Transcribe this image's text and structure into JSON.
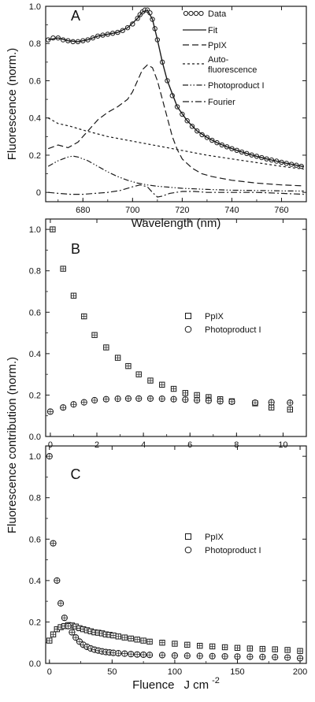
{
  "chart_data": [
    {
      "panel_label": "A",
      "type": "line",
      "xlabel": "Wavelength (nm)",
      "ylabel": "",
      "xlim": [
        665,
        770
      ],
      "ylim": [
        -0.05,
        1.0
      ],
      "xticks": [
        "680",
        "700",
        "720",
        "740",
        "760"
      ],
      "yticks": [
        "0",
        "0.2",
        "0.4",
        "0.6",
        "0.8",
        "1.0"
      ],
      "legend_position": "top-right",
      "series": [
        {
          "name": "Data",
          "style": "circles",
          "x": [
            666,
            668,
            670,
            672,
            674,
            676,
            678,
            680,
            682,
            684,
            686,
            688,
            690,
            692,
            694,
            696,
            698,
            700,
            702,
            703,
            704,
            705,
            706,
            707,
            708,
            709,
            710,
            712,
            714,
            716,
            718,
            720,
            722,
            724,
            726,
            728,
            730,
            732,
            734,
            736,
            738,
            740,
            742,
            744,
            746,
            748,
            750,
            752,
            754,
            756,
            758,
            760,
            762,
            764,
            766,
            768
          ],
          "y": [
            0.82,
            0.83,
            0.83,
            0.82,
            0.815,
            0.81,
            0.81,
            0.815,
            0.82,
            0.83,
            0.84,
            0.845,
            0.85,
            0.855,
            0.86,
            0.87,
            0.885,
            0.905,
            0.935,
            0.955,
            0.97,
            0.98,
            0.98,
            0.965,
            0.93,
            0.88,
            0.82,
            0.7,
            0.6,
            0.52,
            0.46,
            0.42,
            0.385,
            0.355,
            0.33,
            0.31,
            0.295,
            0.28,
            0.267,
            0.255,
            0.245,
            0.235,
            0.226,
            0.217,
            0.209,
            0.201,
            0.194,
            0.187,
            0.18,
            0.174,
            0.168,
            0.162,
            0.156,
            0.151,
            0.146,
            0.14
          ]
        },
        {
          "name": "Fit",
          "style": "solid",
          "x": [
            666,
            670,
            674,
            678,
            682,
            686,
            690,
            694,
            698,
            702,
            704,
            706,
            708,
            710,
            712,
            714,
            718,
            722,
            726,
            730,
            734,
            738,
            742,
            746,
            750,
            754,
            758,
            762,
            766,
            769
          ],
          "y": [
            0.82,
            0.83,
            0.815,
            0.81,
            0.82,
            0.84,
            0.85,
            0.86,
            0.885,
            0.935,
            0.97,
            0.98,
            0.93,
            0.82,
            0.7,
            0.6,
            0.46,
            0.385,
            0.33,
            0.295,
            0.267,
            0.245,
            0.226,
            0.209,
            0.194,
            0.18,
            0.168,
            0.156,
            0.146,
            0.138
          ]
        },
        {
          "name": "PpIX",
          "style": "dash",
          "x": [
            666,
            670,
            674,
            678,
            682,
            686,
            690,
            694,
            698,
            700,
            702,
            704,
            706,
            708,
            710,
            712,
            714,
            716,
            718,
            720,
            724,
            728,
            732,
            740,
            750,
            760,
            769
          ],
          "y": [
            0.235,
            0.255,
            0.24,
            0.27,
            0.33,
            0.39,
            0.43,
            0.46,
            0.5,
            0.54,
            0.6,
            0.66,
            0.685,
            0.67,
            0.6,
            0.5,
            0.4,
            0.3,
            0.23,
            0.18,
            0.13,
            0.1,
            0.085,
            0.065,
            0.05,
            0.04,
            0.035
          ]
        },
        {
          "name": "Auto-fluorescence",
          "style": "shortdash",
          "x": [
            666,
            670,
            675,
            680,
            690,
            700,
            710,
            720,
            730,
            740,
            750,
            760,
            769
          ],
          "y": [
            0.4,
            0.37,
            0.355,
            0.335,
            0.3,
            0.275,
            0.25,
            0.225,
            0.2,
            0.18,
            0.16,
            0.14,
            0.125
          ]
        },
        {
          "name": "Photoproduct I",
          "style": "dashdotdot",
          "x": [
            666,
            670,
            674,
            676,
            678,
            682,
            686,
            690,
            694,
            698,
            702,
            706,
            710,
            720,
            730,
            740,
            750,
            760,
            769
          ],
          "y": [
            0.14,
            0.17,
            0.19,
            0.195,
            0.19,
            0.17,
            0.14,
            0.11,
            0.085,
            0.065,
            0.05,
            0.04,
            0.033,
            0.022,
            0.016,
            0.012,
            0.01,
            0.008,
            0.007
          ]
        },
        {
          "name": "Fourier",
          "style": "dashdot",
          "x": [
            666,
            670,
            675,
            680,
            685,
            690,
            695,
            700,
            703,
            706,
            708,
            710,
            712,
            715,
            720,
            725,
            730,
            740,
            750,
            760,
            769
          ],
          "y": [
            0.0,
            -0.005,
            -0.01,
            -0.01,
            -0.005,
            0.0,
            0.01,
            0.03,
            0.04,
            0.03,
            0.0,
            -0.025,
            -0.02,
            -0.005,
            0.005,
            0.005,
            0.0,
            0.0,
            0.0,
            -0.005,
            -0.01
          ]
        }
      ]
    },
    {
      "panel_label": "B",
      "type": "scatter",
      "xlabel": "",
      "ylabel": "",
      "xlim": [
        -0.2,
        11
      ],
      "ylim": [
        0,
        1.05
      ],
      "xticks": [
        "0",
        "2",
        "4",
        "6",
        "8",
        "10"
      ],
      "yticks": [
        "0.0",
        "0.2",
        "0.4",
        "0.6",
        "0.8",
        "1.0"
      ],
      "legend_position": "center-right",
      "series": [
        {
          "name": "PpIX",
          "marker": "square",
          "x": [
            0.1,
            0.55,
            1.0,
            1.45,
            1.9,
            2.4,
            2.9,
            3.35,
            3.8,
            4.3,
            4.8,
            5.3,
            5.8,
            6.3,
            6.8,
            7.3,
            7.8,
            8.8,
            9.5,
            10.3
          ],
          "y": [
            1.0,
            0.81,
            0.68,
            0.58,
            0.49,
            0.43,
            0.38,
            0.34,
            0.3,
            0.27,
            0.25,
            0.23,
            0.21,
            0.2,
            0.19,
            0.18,
            0.17,
            0.16,
            0.14,
            0.13
          ]
        },
        {
          "name": "Photoproduct I",
          "marker": "circle",
          "x": [
            0.0,
            0.55,
            1.0,
            1.45,
            1.9,
            2.4,
            2.9,
            3.35,
            3.8,
            4.3,
            4.8,
            5.3,
            5.8,
            6.3,
            6.8,
            7.3,
            7.8,
            8.8,
            9.5,
            10.3
          ],
          "y": [
            0.12,
            0.14,
            0.155,
            0.165,
            0.175,
            0.18,
            0.182,
            0.183,
            0.183,
            0.183,
            0.182,
            0.18,
            0.178,
            0.175,
            0.173,
            0.17,
            0.168,
            0.163,
            0.165,
            0.163
          ]
        }
      ]
    },
    {
      "panel_label": "C",
      "type": "scatter",
      "xlabel": "Fluence",
      "xlabel_unit": "J cm",
      "xlabel_sup": "-2",
      "ylabel": "",
      "xlim": [
        -3,
        205
      ],
      "ylim": [
        0,
        1.05
      ],
      "xticks": [
        "0",
        "50",
        "100",
        "150",
        "200"
      ],
      "yticks": [
        "0.0",
        "0.2",
        "0.4",
        "0.6",
        "0.8",
        "1.0"
      ],
      "legend_position": "center-right",
      "series": [
        {
          "name": "PpIX",
          "marker": "square",
          "x": [
            0,
            3,
            6,
            9,
            12,
            15,
            18,
            21,
            24,
            27,
            30,
            33,
            36,
            39,
            42,
            45,
            48,
            51,
            55,
            60,
            65,
            70,
            75,
            80,
            90,
            100,
            110,
            120,
            130,
            140,
            150,
            160,
            170,
            180,
            190,
            200
          ],
          "y": [
            0.11,
            0.14,
            0.165,
            0.175,
            0.18,
            0.185,
            0.183,
            0.178,
            0.17,
            0.165,
            0.16,
            0.155,
            0.15,
            0.148,
            0.145,
            0.14,
            0.138,
            0.135,
            0.13,
            0.125,
            0.12,
            0.115,
            0.11,
            0.105,
            0.1,
            0.095,
            0.09,
            0.085,
            0.082,
            0.078,
            0.075,
            0.072,
            0.07,
            0.068,
            0.065,
            0.06
          ]
        },
        {
          "name": "Photoproduct I",
          "marker": "circle",
          "x": [
            0,
            3,
            6,
            9,
            12,
            15,
            18,
            21,
            24,
            27,
            30,
            33,
            36,
            39,
            42,
            45,
            48,
            51,
            55,
            60,
            65,
            70,
            75,
            80,
            90,
            100,
            110,
            120,
            130,
            140,
            150,
            160,
            170,
            180,
            190,
            200
          ],
          "y": [
            1.0,
            0.58,
            0.4,
            0.29,
            0.22,
            0.18,
            0.15,
            0.125,
            0.105,
            0.09,
            0.08,
            0.072,
            0.066,
            0.062,
            0.058,
            0.055,
            0.053,
            0.051,
            0.049,
            0.047,
            0.045,
            0.043,
            0.042,
            0.041,
            0.04,
            0.038,
            0.037,
            0.036,
            0.035,
            0.034,
            0.033,
            0.032,
            0.031,
            0.03,
            0.028,
            0.025
          ]
        }
      ]
    }
  ],
  "labels": {
    "a_ylabel": "Fluorescence (norm.)",
    "bc_ylabel": "Fluorescence contribution (norm.)",
    "a_legend_auto_1": "Auto-",
    "a_legend_auto_2": "fluorescence"
  },
  "colors": {
    "ink": "#1a1a1a",
    "marker_fill": "#ffffff"
  }
}
